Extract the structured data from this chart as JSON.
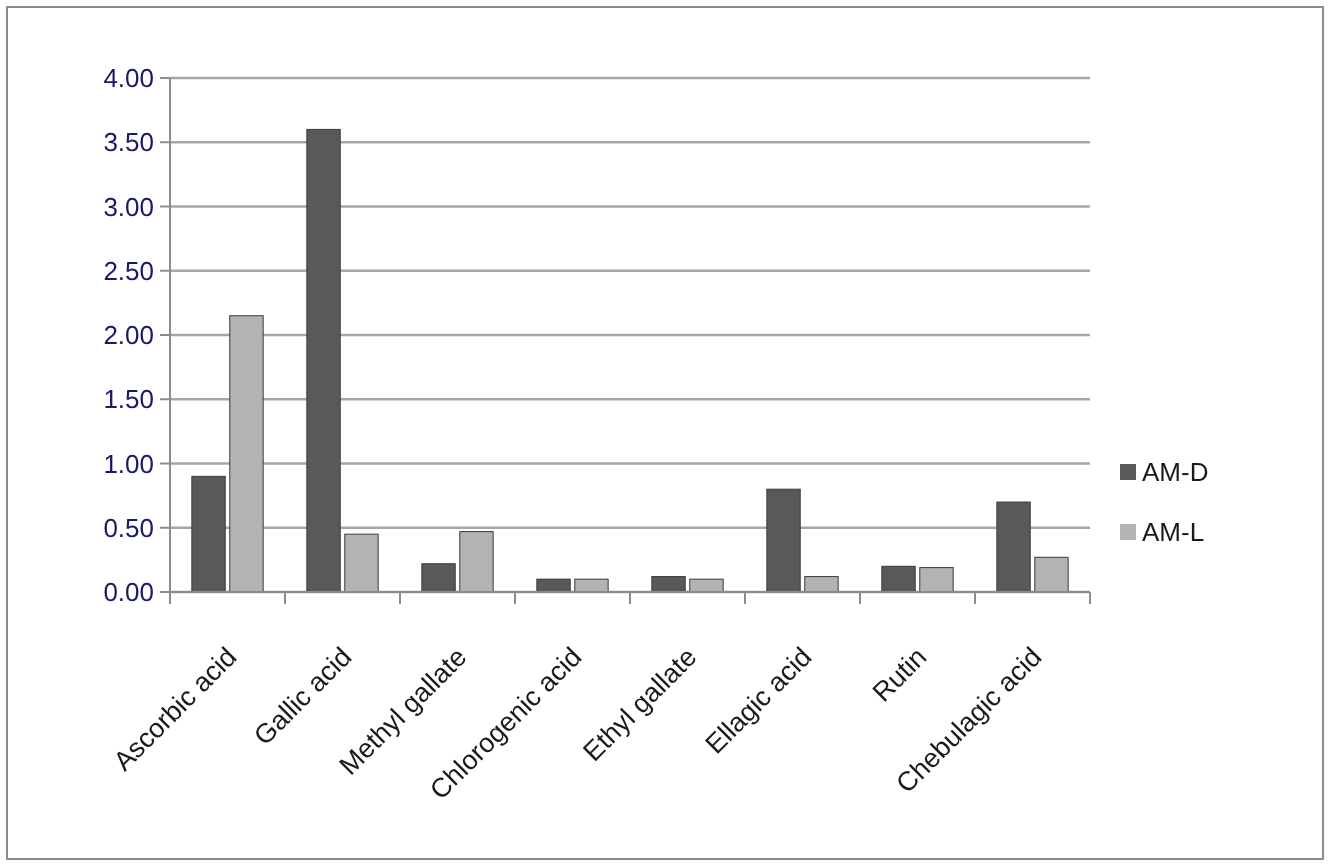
{
  "chart_data": {
    "type": "bar",
    "categories": [
      "Ascorbic acid",
      "Gallic acid",
      "Methyl gallate",
      "Chlorogenic acid",
      "Ethyl gallate",
      "Ellagic acid",
      "Rutin",
      "Chebulagic acid"
    ],
    "series": [
      {
        "name": "AM-D",
        "color": "#595959",
        "values": [
          0.9,
          3.6,
          0.22,
          0.1,
          0.12,
          0.8,
          0.2,
          0.7
        ]
      },
      {
        "name": "AM-L",
        "color": "#b3b3b3",
        "values": [
          2.15,
          0.45,
          0.47,
          0.1,
          0.1,
          0.12,
          0.19,
          0.27
        ]
      }
    ],
    "ylim": [
      0,
      4
    ],
    "yticks": [
      {
        "value": 0,
        "label": "0.00"
      },
      {
        "value": 0.5,
        "label": "0.50"
      },
      {
        "value": 1,
        "label": "1.00"
      },
      {
        "value": 1.5,
        "label": "1.50"
      },
      {
        "value": 2,
        "label": "2.00"
      },
      {
        "value": 2.5,
        "label": "2.50"
      },
      {
        "value": 3,
        "label": "3.00"
      },
      {
        "value": 3.5,
        "label": "3.50"
      },
      {
        "value": 4,
        "label": "4.00"
      }
    ],
    "grid": "y",
    "legend": "right"
  }
}
